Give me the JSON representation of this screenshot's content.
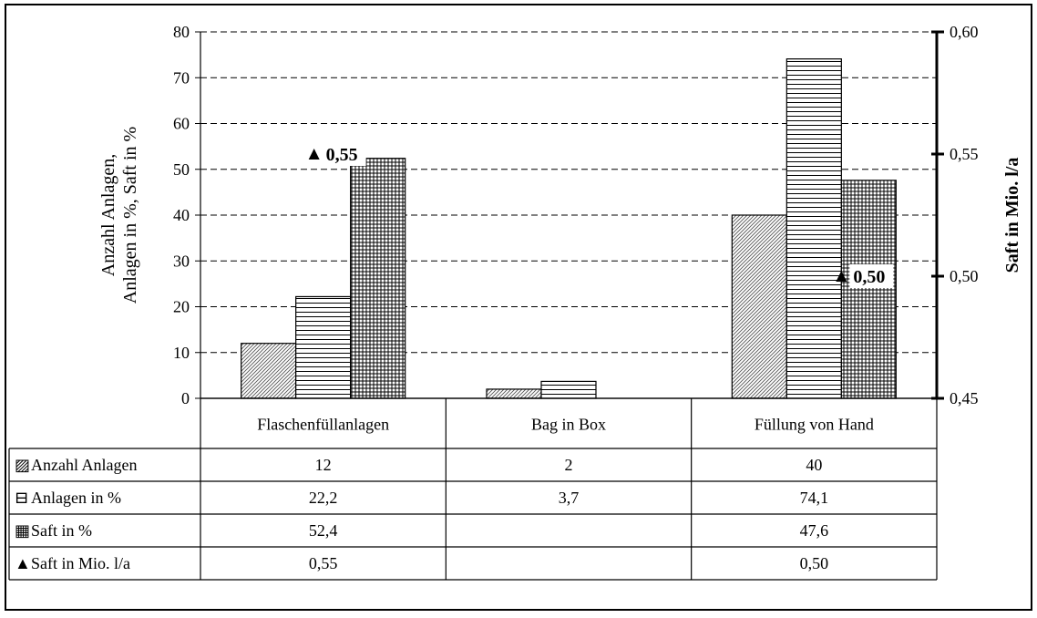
{
  "chart_data": {
    "type": "bar",
    "categories": [
      "Flaschenfüllanlagen",
      "Bag in Box",
      "Füllung von Hand"
    ],
    "series": [
      {
        "name": "Anzahl Anlagen",
        "values": [
          12,
          2,
          40
        ],
        "axis": "left",
        "pattern": "diagonal"
      },
      {
        "name": "Anlagen in %",
        "values": [
          22.2,
          3.7,
          74.1
        ],
        "axis": "left",
        "pattern": "horizontal-lines"
      },
      {
        "name": "Saft in %",
        "values": [
          52.4,
          null,
          47.6
        ],
        "axis": "left",
        "pattern": "grid"
      },
      {
        "name": "Saft in Mio. l/a",
        "values": [
          0.55,
          null,
          0.5
        ],
        "axis": "right",
        "marker": "triangle"
      }
    ],
    "ylabel": "Anzahl Anlagen, Anlagen in %, Saft in %",
    "ylabel_lines": [
      "Anzahl Anlagen,",
      "Anlagen in %, Saft in %"
    ],
    "ylim": [
      0,
      80
    ],
    "yticks": [
      0,
      10,
      20,
      30,
      40,
      50,
      60,
      70,
      80
    ],
    "y2label": "Saft in Mio. l/a",
    "y2lim": [
      0.45,
      0.6
    ],
    "y2ticks": [
      "0,45",
      "0,50",
      "0,55",
      "0,60"
    ],
    "y2tick_values": [
      0.45,
      0.5,
      0.55,
      0.6
    ],
    "grid": "horizontal dashed",
    "legend": "data table below chart",
    "marker_labels": [
      "0,55",
      "",
      "0,50"
    ],
    "table": {
      "rows": [
        {
          "label": "Anzahl Anlagen",
          "symbol": "▨",
          "cells": [
            "12",
            "2",
            "40"
          ]
        },
        {
          "label": "Anlagen in %",
          "symbol": "⊟",
          "cells": [
            "22,2",
            "3,7",
            "74,1"
          ]
        },
        {
          "label": "Saft in %",
          "symbol": "▦",
          "cells": [
            "52,4",
            "",
            "47,6"
          ]
        },
        {
          "label": "Saft in Mio. l/a",
          "symbol": "▲",
          "cells": [
            "0,55",
            "",
            "0,50"
          ]
        }
      ]
    }
  }
}
